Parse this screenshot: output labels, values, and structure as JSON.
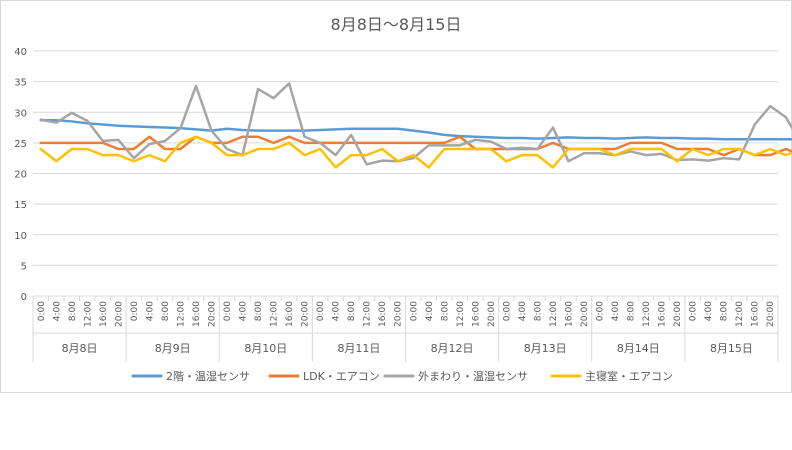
{
  "chart_data": {
    "type": "line",
    "title": "8月8日～8月15日",
    "xlabel": "",
    "ylabel": "",
    "ylim": [
      0,
      40
    ],
    "yticks": [
      0,
      5,
      10,
      15,
      20,
      25,
      30,
      35,
      40
    ],
    "grid": "horizontal",
    "legend": "bottom",
    "hour_labels": [
      "0:00",
      "4:00",
      "8:00",
      "12:00",
      "16:00",
      "20:00"
    ],
    "days": [
      "8月8日",
      "8月9日",
      "8月10日",
      "8月11日",
      "8月12日",
      "8月13日",
      "8月14日",
      "8月15日"
    ],
    "series": [
      {
        "name": "2階・温湿センサ",
        "color": "#5B9BD5",
        "values": [
          28.7,
          28.7,
          28.5,
          28.2,
          28.0,
          27.8,
          27.7,
          27.6,
          27.5,
          27.4,
          27.2,
          27.0,
          27.3,
          27.1,
          27.0,
          27.0,
          27.0,
          27.0,
          27.1,
          27.2,
          27.3,
          27.3,
          27.3,
          27.3,
          27.0,
          26.7,
          26.3,
          26.1,
          26.0,
          25.9,
          25.8,
          25.8,
          25.7,
          25.8,
          25.9,
          25.8,
          25.8,
          25.7,
          25.8,
          25.9,
          25.8,
          25.8,
          25.7,
          25.7,
          25.6,
          25.6,
          25.6,
          25.6,
          25.6,
          25.6,
          25.6,
          25.6,
          25.5,
          25.4,
          25.3,
          25.3,
          25.3,
          25.4,
          25.6,
          26.0,
          26.1
        ]
      },
      {
        "name": "LDK・エアコン",
        "color": "#ED7D31",
        "values": [
          25,
          25,
          25,
          25,
          25,
          24,
          24,
          26,
          24,
          24,
          26,
          25,
          25,
          26,
          26,
          25,
          26,
          25,
          25,
          25,
          25,
          25,
          25,
          25,
          25,
          25,
          25,
          26,
          24,
          24,
          24,
          24,
          24,
          25,
          24,
          24,
          24,
          24,
          25,
          25,
          25,
          24,
          24,
          24,
          23,
          24,
          23,
          23,
          24,
          23,
          24,
          25,
          24,
          24,
          25,
          24,
          24,
          24,
          24,
          25,
          24
        ]
      },
      {
        "name": "外まわり・温湿センサ",
        "color": "#A5A5A5",
        "values": [
          28.8,
          28.3,
          29.9,
          28.6,
          25.3,
          25.5,
          22.5,
          24.8,
          25.3,
          27.4,
          34.3,
          27.0,
          24.0,
          23.0,
          33.8,
          32.3,
          34.7,
          26.0,
          25.0,
          23.0,
          26.3,
          21.5,
          22.1,
          22.0,
          22.5,
          24.6,
          24.6,
          24.6,
          25.5,
          25.2,
          24.0,
          24.2,
          24.0,
          27.5,
          22.0,
          23.3,
          23.3,
          23.0,
          23.6,
          23.0,
          23.2,
          22.2,
          22.3,
          22.1,
          22.5,
          22.3,
          28.0,
          31.0,
          29.2,
          25.0
        ]
      },
      {
        "name": "主寝室・エアコン",
        "color": "#FFC000",
        "values": [
          24,
          22,
          24,
          24,
          23,
          23,
          22,
          23,
          22,
          25,
          26,
          25,
          23,
          23,
          24,
          24,
          25,
          23,
          24,
          21,
          23,
          23,
          24,
          22,
          23,
          21,
          24,
          24,
          24,
          24,
          22,
          23,
          23,
          21,
          24,
          24,
          24,
          23,
          24,
          24,
          24,
          22,
          24,
          23,
          24,
          24,
          23,
          24,
          23,
          24,
          24
        ]
      }
    ]
  }
}
